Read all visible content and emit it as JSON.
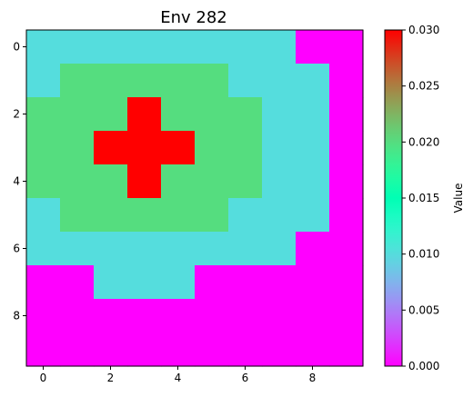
{
  "chart_data": {
    "type": "heatmap",
    "title": "Env 282",
    "xlabel": "",
    "ylabel": "",
    "colorbar_label": "Value",
    "colormap": "rainbow",
    "vmin": 0.0,
    "vmax": 0.03,
    "x_ticks": [
      "0",
      "2",
      "4",
      "6",
      "8"
    ],
    "y_ticks": [
      "0",
      "2",
      "4",
      "6",
      "8"
    ],
    "colorbar_ticks": [
      "0.000",
      "0.005",
      "0.010",
      "0.015",
      "0.020",
      "0.025",
      "0.030"
    ],
    "grid": false,
    "rows": 10,
    "cols": 10,
    "values": [
      [
        0.01,
        0.01,
        0.01,
        0.01,
        0.01,
        0.01,
        0.01,
        0.01,
        0.0,
        0.0
      ],
      [
        0.01,
        0.02,
        0.02,
        0.02,
        0.02,
        0.02,
        0.01,
        0.01,
        0.01,
        0.0
      ],
      [
        0.02,
        0.02,
        0.02,
        0.03,
        0.02,
        0.02,
        0.02,
        0.01,
        0.01,
        0.0
      ],
      [
        0.02,
        0.02,
        0.03,
        0.03,
        0.03,
        0.02,
        0.02,
        0.01,
        0.01,
        0.0
      ],
      [
        0.02,
        0.02,
        0.02,
        0.03,
        0.02,
        0.02,
        0.02,
        0.01,
        0.01,
        0.0
      ],
      [
        0.01,
        0.02,
        0.02,
        0.02,
        0.02,
        0.02,
        0.01,
        0.01,
        0.01,
        0.0
      ],
      [
        0.01,
        0.01,
        0.01,
        0.01,
        0.01,
        0.01,
        0.01,
        0.01,
        0.0,
        0.0
      ],
      [
        0.0,
        0.0,
        0.01,
        0.01,
        0.01,
        0.0,
        0.0,
        0.0,
        0.0,
        0.0
      ],
      [
        0.0,
        0.0,
        0.0,
        0.0,
        0.0,
        0.0,
        0.0,
        0.0,
        0.0,
        0.0
      ],
      [
        0.0,
        0.0,
        0.0,
        0.0,
        0.0,
        0.0,
        0.0,
        0.0,
        0.0,
        0.0
      ]
    ]
  }
}
